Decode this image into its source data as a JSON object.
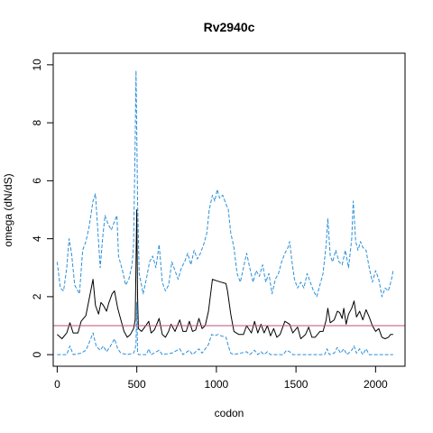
{
  "chart_data": {
    "type": "line",
    "title": "Rv2940c",
    "xlabel": "codon",
    "ylabel": "omega (dN/dS)",
    "xlim": [
      -25,
      2185
    ],
    "ylim": [
      -0.4,
      10.4
    ],
    "xticks": [
      0,
      500,
      1000,
      1500,
      2000
    ],
    "yticks": [
      0,
      2,
      4,
      6,
      8,
      10
    ],
    "grid": false,
    "reference_line": {
      "y": 1,
      "color": "#c2527a"
    },
    "series": [
      {
        "style": "solid",
        "color": "#000000",
        "points": [
          [
            0,
            0.7
          ],
          [
            30,
            0.55
          ],
          [
            60,
            0.75
          ],
          [
            80,
            1.1
          ],
          [
            100,
            0.75
          ],
          [
            130,
            0.75
          ],
          [
            150,
            1.15
          ],
          [
            180,
            1.35
          ],
          [
            200,
            1.9
          ],
          [
            225,
            2.6
          ],
          [
            240,
            1.7
          ],
          [
            260,
            1.4
          ],
          [
            275,
            1.8
          ],
          [
            290,
            1.7
          ],
          [
            310,
            1.5
          ],
          [
            325,
            1.8
          ],
          [
            345,
            2.1
          ],
          [
            360,
            2.2
          ],
          [
            380,
            1.6
          ],
          [
            400,
            1.2
          ],
          [
            420,
            0.8
          ],
          [
            440,
            0.6
          ],
          [
            460,
            0.7
          ],
          [
            480,
            0.9
          ],
          [
            490,
            1.2
          ],
          [
            500,
            5.0
          ],
          [
            505,
            2.0
          ],
          [
            510,
            0.9
          ],
          [
            530,
            0.8
          ],
          [
            550,
            0.95
          ],
          [
            575,
            1.15
          ],
          [
            590,
            0.75
          ],
          [
            610,
            0.85
          ],
          [
            640,
            1.25
          ],
          [
            660,
            0.7
          ],
          [
            680,
            0.6
          ],
          [
            700,
            0.8
          ],
          [
            715,
            1.05
          ],
          [
            740,
            0.8
          ],
          [
            770,
            1.2
          ],
          [
            790,
            0.8
          ],
          [
            810,
            0.8
          ],
          [
            830,
            1.15
          ],
          [
            850,
            0.8
          ],
          [
            870,
            0.85
          ],
          [
            890,
            1.25
          ],
          [
            910,
            0.9
          ],
          [
            930,
            1.0
          ],
          [
            950,
            1.5
          ],
          [
            975,
            2.6
          ],
          [
            1000,
            2.55
          ],
          [
            1030,
            2.5
          ],
          [
            1060,
            2.45
          ],
          [
            1070,
            2.2
          ],
          [
            1090,
            1.4
          ],
          [
            1110,
            0.8
          ],
          [
            1140,
            0.7
          ],
          [
            1170,
            0.7
          ],
          [
            1190,
            1.0
          ],
          [
            1220,
            0.75
          ],
          [
            1240,
            1.15
          ],
          [
            1260,
            0.75
          ],
          [
            1280,
            1.05
          ],
          [
            1300,
            0.75
          ],
          [
            1320,
            1.0
          ],
          [
            1340,
            0.65
          ],
          [
            1360,
            0.9
          ],
          [
            1380,
            0.6
          ],
          [
            1400,
            0.7
          ],
          [
            1430,
            1.15
          ],
          [
            1460,
            1.05
          ],
          [
            1480,
            0.75
          ],
          [
            1510,
            0.95
          ],
          [
            1530,
            0.55
          ],
          [
            1560,
            0.7
          ],
          [
            1580,
            0.95
          ],
          [
            1600,
            0.6
          ],
          [
            1620,
            0.6
          ],
          [
            1650,
            0.8
          ],
          [
            1670,
            0.8
          ],
          [
            1690,
            1.2
          ],
          [
            1700,
            1.6
          ],
          [
            1715,
            1.1
          ],
          [
            1740,
            1.2
          ],
          [
            1760,
            1.5
          ],
          [
            1775,
            1.45
          ],
          [
            1790,
            1.25
          ],
          [
            1800,
            1.6
          ],
          [
            1815,
            1.05
          ],
          [
            1830,
            1.4
          ],
          [
            1850,
            1.6
          ],
          [
            1865,
            1.85
          ],
          [
            1880,
            1.3
          ],
          [
            1900,
            1.5
          ],
          [
            1920,
            1.2
          ],
          [
            1940,
            1.55
          ],
          [
            1960,
            1.3
          ],
          [
            1980,
            1.0
          ],
          [
            2000,
            0.8
          ],
          [
            2020,
            0.9
          ],
          [
            2040,
            0.6
          ],
          [
            2060,
            0.55
          ],
          [
            2080,
            0.6
          ],
          [
            2095,
            0.7
          ],
          [
            2110,
            0.7
          ]
        ]
      },
      {
        "style": "dashed",
        "color": "#2b90d9",
        "points": [
          [
            0,
            3.2
          ],
          [
            20,
            2.3
          ],
          [
            40,
            2.2
          ],
          [
            60,
            3.0
          ],
          [
            75,
            4.0
          ],
          [
            90,
            3.5
          ],
          [
            110,
            2.4
          ],
          [
            140,
            2.1
          ],
          [
            160,
            3.6
          ],
          [
            180,
            3.9
          ],
          [
            200,
            4.4
          ],
          [
            225,
            5.3
          ],
          [
            240,
            5.55
          ],
          [
            255,
            4.3
          ],
          [
            270,
            3.0
          ],
          [
            285,
            4.0
          ],
          [
            300,
            4.8
          ],
          [
            320,
            4.5
          ],
          [
            340,
            4.3
          ],
          [
            360,
            4.6
          ],
          [
            375,
            4.8
          ],
          [
            385,
            3.4
          ],
          [
            410,
            2.9
          ],
          [
            430,
            2.4
          ],
          [
            450,
            2.6
          ],
          [
            470,
            3.1
          ],
          [
            480,
            3.8
          ],
          [
            490,
            7.5
          ],
          [
            495,
            9.8
          ],
          [
            505,
            5.3
          ],
          [
            515,
            2.8
          ],
          [
            540,
            2.1
          ],
          [
            560,
            2.6
          ],
          [
            580,
            3.2
          ],
          [
            600,
            3.4
          ],
          [
            620,
            3.0
          ],
          [
            640,
            3.8
          ],
          [
            660,
            2.5
          ],
          [
            680,
            2.2
          ],
          [
            700,
            2.4
          ],
          [
            720,
            3.2
          ],
          [
            740,
            2.9
          ],
          [
            760,
            2.6
          ],
          [
            780,
            3.0
          ],
          [
            800,
            3.2
          ],
          [
            820,
            3.5
          ],
          [
            840,
            3.1
          ],
          [
            860,
            3.6
          ],
          [
            880,
            3.3
          ],
          [
            900,
            3.5
          ],
          [
            920,
            3.8
          ],
          [
            940,
            4.2
          ],
          [
            955,
            5.0
          ],
          [
            975,
            5.5
          ],
          [
            990,
            5.3
          ],
          [
            1005,
            5.7
          ],
          [
            1020,
            5.4
          ],
          [
            1040,
            5.5
          ],
          [
            1060,
            5.2
          ],
          [
            1075,
            5.0
          ],
          [
            1090,
            4.2
          ],
          [
            1110,
            3.7
          ],
          [
            1130,
            2.8
          ],
          [
            1150,
            2.5
          ],
          [
            1170,
            3.0
          ],
          [
            1190,
            3.5
          ],
          [
            1210,
            3.0
          ],
          [
            1230,
            2.5
          ],
          [
            1250,
            2.9
          ],
          [
            1270,
            2.7
          ],
          [
            1290,
            3.1
          ],
          [
            1310,
            2.5
          ],
          [
            1330,
            2.8
          ],
          [
            1350,
            2.1
          ],
          [
            1370,
            2.6
          ],
          [
            1390,
            2.8
          ],
          [
            1410,
            3.2
          ],
          [
            1430,
            3.5
          ],
          [
            1450,
            3.7
          ],
          [
            1460,
            3.9
          ],
          [
            1475,
            3.2
          ],
          [
            1490,
            2.6
          ],
          [
            1510,
            2.3
          ],
          [
            1530,
            2.5
          ],
          [
            1550,
            2.3
          ],
          [
            1570,
            2.8
          ],
          [
            1590,
            2.5
          ],
          [
            1610,
            2.2
          ],
          [
            1630,
            2.0
          ],
          [
            1650,
            2.4
          ],
          [
            1670,
            2.8
          ],
          [
            1690,
            3.8
          ],
          [
            1700,
            4.7
          ],
          [
            1715,
            3.4
          ],
          [
            1730,
            3.2
          ],
          [
            1750,
            3.6
          ],
          [
            1770,
            3.2
          ],
          [
            1790,
            3.1
          ],
          [
            1810,
            3.6
          ],
          [
            1830,
            3.0
          ],
          [
            1850,
            4.0
          ],
          [
            1860,
            5.3
          ],
          [
            1875,
            3.9
          ],
          [
            1890,
            3.6
          ],
          [
            1905,
            3.9
          ],
          [
            1920,
            3.7
          ],
          [
            1940,
            3.6
          ],
          [
            1960,
            3.0
          ],
          [
            1980,
            2.5
          ],
          [
            2000,
            2.9
          ],
          [
            2020,
            2.6
          ],
          [
            2040,
            2.0
          ],
          [
            2060,
            2.3
          ],
          [
            2080,
            2.2
          ],
          [
            2100,
            2.6
          ],
          [
            2110,
            2.9
          ]
        ]
      },
      {
        "style": "dashed",
        "color": "#2b90d9",
        "points": [
          [
            0,
            0.0
          ],
          [
            60,
            0.0
          ],
          [
            80,
            0.3
          ],
          [
            100,
            0.0
          ],
          [
            150,
            0.05
          ],
          [
            180,
            0.15
          ],
          [
            200,
            0.4
          ],
          [
            225,
            0.75
          ],
          [
            245,
            0.3
          ],
          [
            270,
            0.15
          ],
          [
            290,
            0.3
          ],
          [
            310,
            0.1
          ],
          [
            330,
            0.25
          ],
          [
            345,
            0.4
          ],
          [
            360,
            0.55
          ],
          [
            380,
            0.2
          ],
          [
            400,
            0.05
          ],
          [
            440,
            0.0
          ],
          [
            480,
            0.05
          ],
          [
            490,
            0.2
          ],
          [
            495,
            0.4
          ],
          [
            500,
            1.8
          ],
          [
            505,
            0.1
          ],
          [
            510,
            0.0
          ],
          [
            560,
            0.0
          ],
          [
            575,
            0.2
          ],
          [
            590,
            0.0
          ],
          [
            640,
            0.15
          ],
          [
            660,
            0.0
          ],
          [
            720,
            0.05
          ],
          [
            770,
            0.2
          ],
          [
            790,
            0.0
          ],
          [
            830,
            0.15
          ],
          [
            850,
            0.0
          ],
          [
            890,
            0.2
          ],
          [
            910,
            0.05
          ],
          [
            950,
            0.35
          ],
          [
            970,
            0.7
          ],
          [
            990,
            0.65
          ],
          [
            1010,
            0.7
          ],
          [
            1030,
            0.65
          ],
          [
            1060,
            0.6
          ],
          [
            1075,
            0.3
          ],
          [
            1090,
            0.05
          ],
          [
            1110,
            0.0
          ],
          [
            1190,
            0.1
          ],
          [
            1210,
            0.0
          ],
          [
            1240,
            0.15
          ],
          [
            1260,
            0.0
          ],
          [
            1280,
            0.1
          ],
          [
            1300,
            0.0
          ],
          [
            1320,
            0.1
          ],
          [
            1340,
            0.0
          ],
          [
            1420,
            0.0
          ],
          [
            1440,
            0.15
          ],
          [
            1460,
            0.1
          ],
          [
            1480,
            0.0
          ],
          [
            1680,
            0.0
          ],
          [
            1695,
            0.2
          ],
          [
            1710,
            0.0
          ],
          [
            1740,
            0.05
          ],
          [
            1760,
            0.25
          ],
          [
            1780,
            0.05
          ],
          [
            1800,
            0.2
          ],
          [
            1820,
            0.0
          ],
          [
            1850,
            0.15
          ],
          [
            1865,
            0.3
          ],
          [
            1880,
            0.05
          ],
          [
            1900,
            0.2
          ],
          [
            1920,
            0.0
          ],
          [
            1940,
            0.2
          ],
          [
            1960,
            0.0
          ],
          [
            2110,
            0.0
          ]
        ]
      }
    ]
  }
}
